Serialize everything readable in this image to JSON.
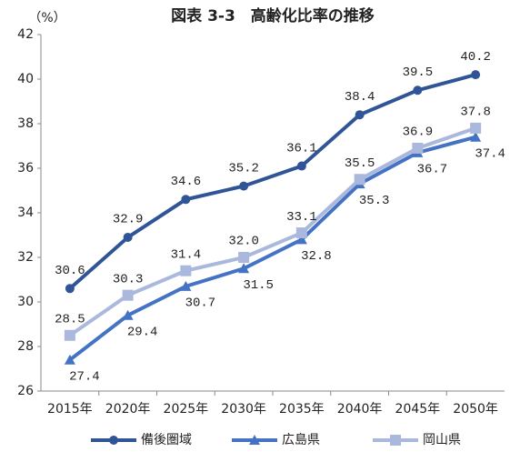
{
  "chart_data": {
    "type": "line",
    "title": "図表 3-3　高齢化比率の推移",
    "y_axis_label": "（%）",
    "categories": [
      "2015年",
      "2020年",
      "2025年",
      "2030年",
      "2035年",
      "2040年",
      "2045年",
      "2050年"
    ],
    "series": [
      {
        "name": "備後圏域",
        "color": "#2f5597",
        "marker": "circle",
        "values": [
          30.6,
          32.9,
          34.6,
          35.2,
          36.1,
          38.4,
          39.5,
          40.2
        ],
        "value_labels": [
          "30.6",
          "32.9",
          "34.6",
          "35.2",
          "36.1",
          "38.4",
          "39.5",
          "40.2"
        ]
      },
      {
        "name": "広島県",
        "color": "#4472c4",
        "marker": "triangle",
        "values": [
          27.4,
          29.4,
          30.7,
          31.5,
          32.8,
          35.3,
          36.7,
          37.4
        ],
        "value_labels": [
          "27.4",
          "29.4",
          "30.7",
          "31.5",
          "32.8",
          "35.3",
          "36.7",
          "37.4"
        ]
      },
      {
        "name": "岡山県",
        "color": "#a9b8dc",
        "marker": "square",
        "values": [
          28.5,
          30.3,
          31.4,
          32.0,
          33.1,
          35.5,
          36.9,
          37.8
        ],
        "value_labels": [
          "28.5",
          "30.3",
          "31.4",
          "32.0",
          "33.1",
          "35.5",
          "36.9",
          "37.8"
        ]
      }
    ],
    "ylim": [
      26,
      42
    ],
    "yticks": [
      26,
      28,
      30,
      32,
      34,
      36,
      38,
      40,
      42
    ],
    "grid": false,
    "legend": "bottom"
  }
}
